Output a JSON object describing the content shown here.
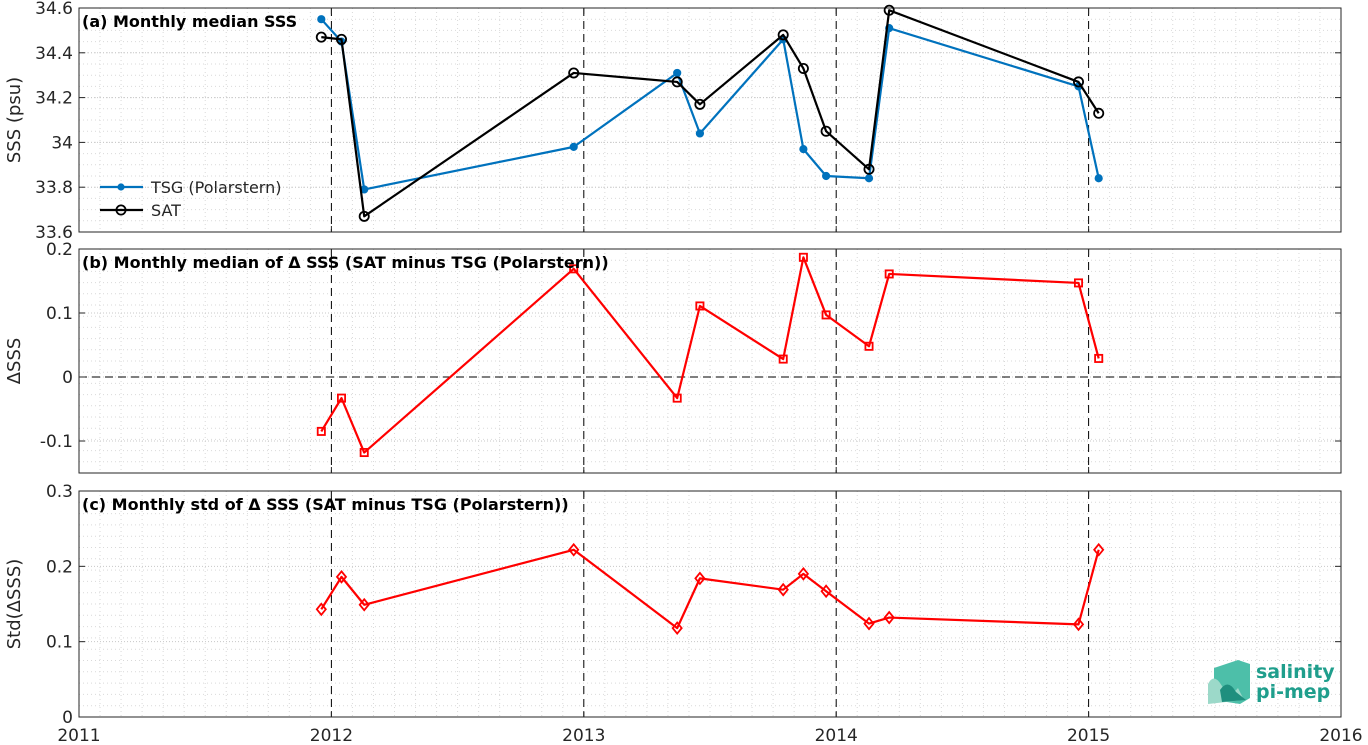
{
  "x_axis": {
    "min": 2011,
    "max": 2016,
    "ticks": [
      "2011",
      "2012",
      "2013",
      "2014",
      "2015",
      "2016"
    ],
    "year_lines": [
      2012,
      2013,
      2014,
      2015
    ]
  },
  "logo": {
    "line1": "salinity",
    "line2": "pi-mep"
  },
  "colors": {
    "tsg": "#0072bd",
    "sat": "#000000",
    "delta": "#ff0000",
    "grid": "#d9d9d9"
  },
  "chart_data": [
    {
      "type": "line",
      "title": "(a) Monthly median SSS",
      "ylabel": "SSS (psu)",
      "ylim": [
        33.6,
        34.6
      ],
      "yticks": [
        "33.6",
        "33.8",
        "34",
        "34.2",
        "34.4",
        "34.6"
      ],
      "legend": "left",
      "series": [
        {
          "name": "TSG (Polarstern)",
          "marker": "dot",
          "color": "#0072bd",
          "x": [
            2011.96,
            2012.04,
            2012.13,
            2012.96,
            2013.37,
            2013.46,
            2013.79,
            2013.87,
            2013.96,
            2014.13,
            2014.21,
            2014.96,
            2015.04
          ],
          "y": [
            34.55,
            34.45,
            33.79,
            33.98,
            34.31,
            34.04,
            34.46,
            33.97,
            33.85,
            33.84,
            34.51,
            34.25,
            33.84
          ]
        },
        {
          "name": "SAT",
          "marker": "circle",
          "color": "#000000",
          "x": [
            2011.96,
            2012.04,
            2012.13,
            2012.96,
            2013.37,
            2013.46,
            2013.79,
            2013.87,
            2013.96,
            2014.13,
            2014.21,
            2014.96,
            2015.04
          ],
          "y": [
            34.47,
            34.46,
            33.67,
            34.31,
            34.27,
            34.17,
            34.48,
            34.33,
            34.05,
            33.88,
            34.59,
            34.27,
            34.13
          ]
        }
      ]
    },
    {
      "type": "line",
      "title": "(b) Monthly median of Δ SSS (SAT minus TSG (Polarstern))",
      "ylabel": "ΔSSS",
      "ylim": [
        -0.15,
        0.2
      ],
      "yticks": [
        "-0.1",
        "0",
        "0.1",
        "0.2"
      ],
      "zero_line": true,
      "series": [
        {
          "marker": "square",
          "color": "#ff0000",
          "x": [
            2011.96,
            2012.04,
            2012.13,
            2012.96,
            2013.37,
            2013.46,
            2013.79,
            2013.87,
            2013.96,
            2014.13,
            2014.21,
            2014.96,
            2015.04
          ],
          "y": [
            -0.085,
            -0.033,
            -0.118,
            0.169,
            -0.033,
            0.111,
            0.028,
            0.187,
            0.097,
            0.048,
            0.161,
            0.147,
            0.029
          ]
        }
      ]
    },
    {
      "type": "line",
      "title": "(c) Monthly std of Δ SSS (SAT minus TSG (Polarstern))",
      "ylabel": "Std(ΔSSS)",
      "ylim": [
        0,
        0.3
      ],
      "yticks": [
        "0",
        "0.1",
        "0.2",
        "0.3"
      ],
      "series": [
        {
          "marker": "diamond",
          "color": "#ff0000",
          "x": [
            2011.96,
            2012.04,
            2012.13,
            2012.96,
            2013.37,
            2013.46,
            2013.79,
            2013.87,
            2013.96,
            2014.13,
            2014.21,
            2014.96,
            2015.04
          ],
          "y": [
            0.143,
            0.186,
            0.149,
            0.222,
            0.118,
            0.184,
            0.169,
            0.19,
            0.167,
            0.124,
            0.132,
            0.123,
            0.222
          ]
        }
      ]
    }
  ]
}
